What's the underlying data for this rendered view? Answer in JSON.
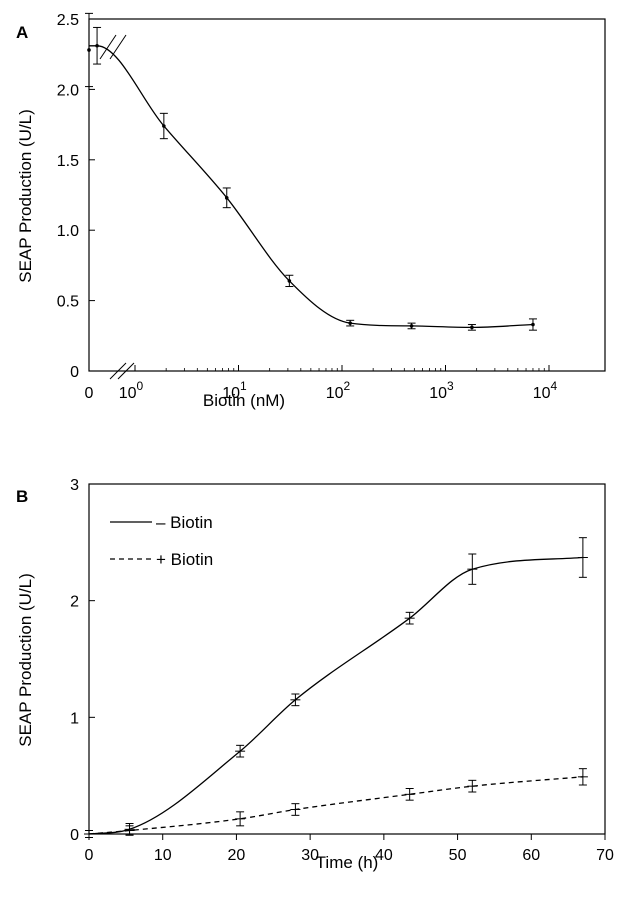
{
  "chart_data": [
    {
      "panel_label": "A",
      "type": "line",
      "xlabel": "Biotin (nM)",
      "ylabel": "SEAP Production (U/L)",
      "x_scale": "log",
      "x_axis_break": true,
      "y_axis_break": true,
      "x_tick_labels": [
        {
          "value": 0,
          "base": "0",
          "exp": ""
        },
        {
          "value": 1,
          "base": "10",
          "exp": "0"
        },
        {
          "value": 10,
          "base": "10",
          "exp": "1"
        },
        {
          "value": 100,
          "base": "10",
          "exp": "2"
        },
        {
          "value": 1000,
          "base": "10",
          "exp": "3"
        },
        {
          "value": 10000,
          "base": "10",
          "exp": "4"
        }
      ],
      "yticks": [
        {
          "value": 0,
          "label": "0"
        },
        {
          "value": 0.5,
          "label": "0.5"
        },
        {
          "value": 1.0,
          "label": "1.0"
        },
        {
          "value": 1.5,
          "label": "1.5"
        },
        {
          "value": 2.0,
          "label": "2.0"
        },
        {
          "value": 2.5,
          "label": "2.5"
        }
      ],
      "ylim": [
        0,
        2.5
      ],
      "points": [
        {
          "x": 0,
          "y": 2.28,
          "err": 0.26
        },
        {
          "x": 0.43,
          "y": 2.31,
          "err": 0.13
        },
        {
          "x": 1.9,
          "y": 1.74,
          "err": 0.09
        },
        {
          "x": 7.7,
          "y": 1.23,
          "err": 0.07
        },
        {
          "x": 31,
          "y": 0.64,
          "err": 0.04
        },
        {
          "x": 120,
          "y": 0.34,
          "err": 0.02
        },
        {
          "x": 470,
          "y": 0.32,
          "err": 0.02
        },
        {
          "x": 1800,
          "y": 0.31,
          "err": 0.02
        },
        {
          "x": 7000,
          "y": 0.33,
          "err": 0.04
        }
      ]
    },
    {
      "panel_label": "B",
      "type": "line",
      "xlabel": "Time (h)",
      "ylabel": "SEAP Production (U/L)",
      "xlim": [
        0,
        70
      ],
      "ylim": [
        0,
        3
      ],
      "xticks": [
        0,
        10,
        20,
        30,
        40,
        50,
        60,
        70
      ],
      "yticks": [
        0,
        1,
        2,
        3
      ],
      "legend_position": "top-left",
      "series": [
        {
          "name": "– Biotin",
          "line_style": "solid",
          "x": [
            0,
            5.5,
            20.5,
            28,
            43.5,
            52,
            67
          ],
          "y": [
            0,
            0.04,
            0.71,
            1.15,
            1.85,
            2.27,
            2.37
          ],
          "err": [
            0.03,
            0.05,
            0.05,
            0.05,
            0.05,
            0.13,
            0.17
          ]
        },
        {
          "name": "+ Biotin",
          "line_style": "dashed",
          "x": [
            0,
            5.5,
            20.5,
            28,
            43.5,
            52,
            67
          ],
          "y": [
            0,
            0.03,
            0.13,
            0.21,
            0.34,
            0.41,
            0.49
          ],
          "err": [
            0.03,
            0.04,
            0.06,
            0.05,
            0.05,
            0.05,
            0.07
          ]
        }
      ]
    }
  ]
}
